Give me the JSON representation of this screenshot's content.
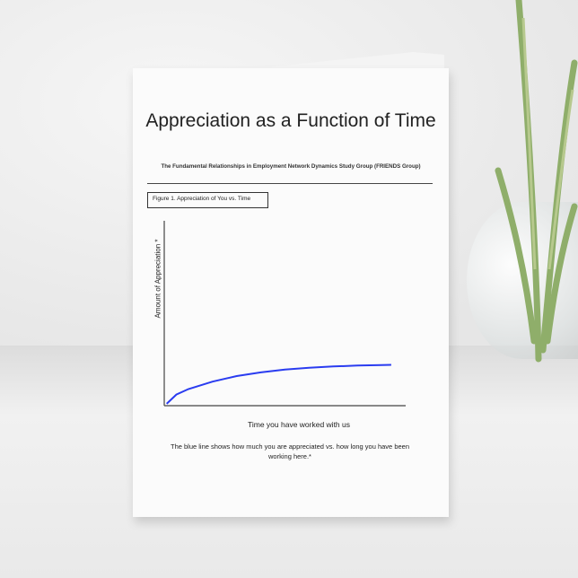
{
  "card": {
    "title": "Appreciation as a Function of Time",
    "subtitle": "The Fundamental Relationships in Employment Network Dynamics Study Group (FRIENDS Group)",
    "caption": "The blue line shows how much you are appreciated vs. how long you have been working here.*"
  },
  "chart_data": {
    "type": "line",
    "title": "Figure 1. Appreciation of You vs. Time",
    "xlabel": "Time you have worked with us",
    "ylabel": "Amount of Appreciation *",
    "xlim": [
      0,
      1
    ],
    "ylim": [
      0,
      1
    ],
    "grid": false,
    "series": [
      {
        "color": "#2a3cf0",
        "x": [
          0.01,
          0.05,
          0.1,
          0.2,
          0.3,
          0.4,
          0.5,
          0.6,
          0.7,
          0.8,
          0.9,
          0.94
        ],
        "y": [
          0.01,
          0.06,
          0.09,
          0.13,
          0.16,
          0.18,
          0.195,
          0.205,
          0.212,
          0.217,
          0.22,
          0.221
        ]
      }
    ]
  }
}
